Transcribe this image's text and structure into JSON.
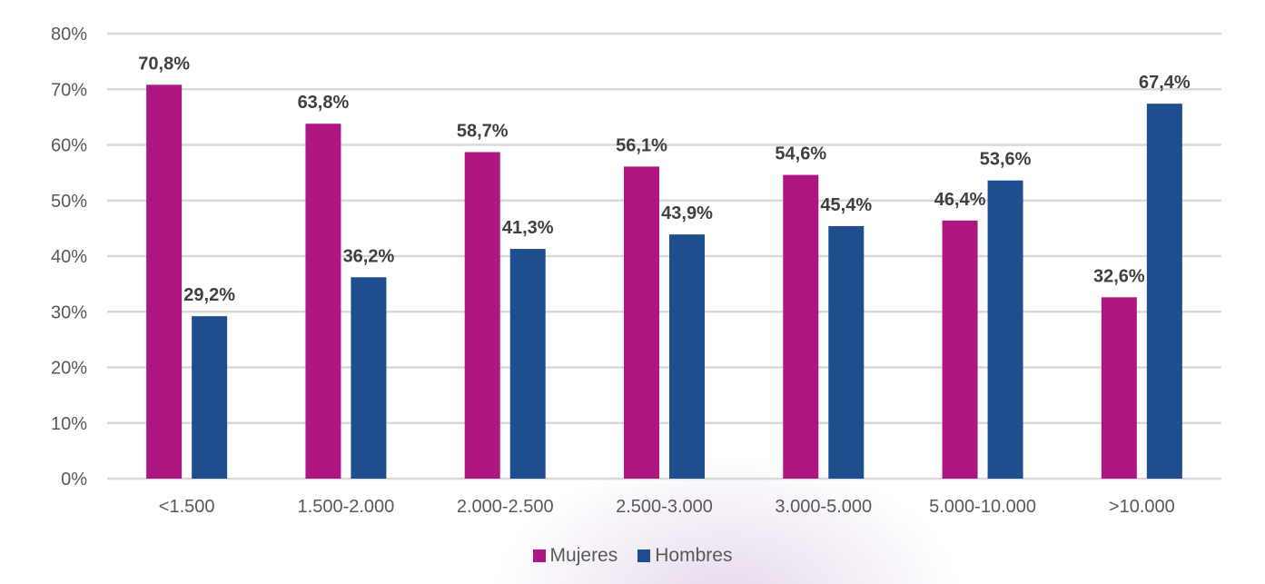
{
  "chart_data": {
    "type": "bar",
    "categories": [
      "<1.500",
      "1.500-2.000",
      "2.000-2.500",
      "2.500-3.000",
      "3.000-5.000",
      "5.000-10.000",
      ">10.000"
    ],
    "series": [
      {
        "name": "Mujeres",
        "color": "#AE1682",
        "values": [
          70.8,
          63.8,
          58.7,
          56.1,
          54.6,
          46.4,
          32.6
        ],
        "labels": [
          "70,8%",
          "63,8%",
          "58,7%",
          "56,1%",
          "54,6%",
          "46,4%",
          "32,6%"
        ]
      },
      {
        "name": "Hombres",
        "color": "#1F4E8F",
        "values": [
          29.2,
          36.2,
          41.3,
          43.9,
          45.4,
          53.6,
          67.4
        ],
        "labels": [
          "29,2%",
          "36,2%",
          "41,3%",
          "43,9%",
          "45,4%",
          "53,6%",
          "67,4%"
        ]
      }
    ],
    "yticks": [
      "0%",
      "10%",
      "20%",
      "30%",
      "40%",
      "50%",
      "60%",
      "70%",
      "80%"
    ],
    "ylim": [
      0,
      80
    ],
    "grid": true,
    "legend_position": "bottom"
  }
}
